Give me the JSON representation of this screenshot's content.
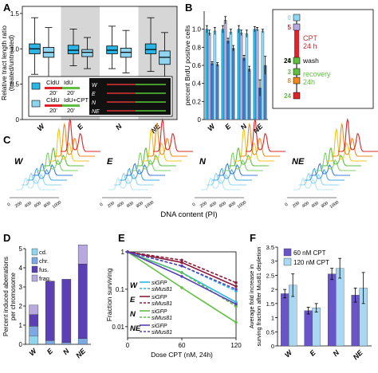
{
  "figure": {
    "panel_labels": [
      "A",
      "B",
      "C",
      "D",
      "E",
      "F"
    ],
    "cond_labels": [
      "W",
      "E",
      "N",
      "NE"
    ],
    "colors": {
      "light_blue": "#8fd5f0",
      "cyan": "#29b6e6",
      "dark_blue": "#3f7fd6",
      "purple": "#5a3fb5",
      "lavender": "#b7a9e0",
      "grey_band": "#d6d6d6",
      "green": "#5fbf3f",
      "red": "#e0232a",
      "maroon": "#8a1c3a",
      "orange": "#f08a1c"
    }
  },
  "panelA": {
    "ylabel": "Relative tract length ratio\n(treated/untreated)",
    "yticks": [
      "0",
      "0.5",
      "1.0",
      "1.5"
    ],
    "legend": {
      "row1": {
        "l1": "CldU",
        "l2": "IdU",
        "t1": "20'",
        "t2": "20'"
      },
      "row2": {
        "l1": "CldU",
        "l2": "IdU+CPT",
        "t1": "20'",
        "t2": "20'"
      }
    },
    "strip_labels": [
      "W",
      "E",
      "N",
      "NE"
    ]
  },
  "panelB": {
    "ylabel": "percent BrdU positive cells",
    "yticks": [
      "0",
      "0.2",
      "0.4",
      "0.6",
      "0.8",
      "1.0"
    ],
    "timeline": {
      "top": "0",
      "t5": "5",
      "cpt": "CPT\n24 h",
      "t0": "0",
      "t24a": "24",
      "wash": "wash",
      "t3": "3",
      "t8": "8",
      "recovery": "recovery\n24h",
      "t24b": "24"
    }
  },
  "panelC": {
    "xlabel": "DNA content (PI)",
    "xticks": [
      "0",
      "200",
      "400",
      "600",
      "800",
      "1000"
    ]
  },
  "panelD": {
    "ylabel": "Percent induced aberrations\nper chromosome",
    "yticks": [
      "0",
      "1",
      "2",
      "3",
      "4",
      "5"
    ],
    "legend": [
      "cd.",
      "chr.",
      "fus.",
      "frag."
    ]
  },
  "panelE": {
    "ylabel": "Fraction surviving",
    "xlabel": "Dose CPT (nM, 24h)",
    "yticks": [
      "0.01",
      "0.1",
      "1"
    ],
    "xticks": [
      "0",
      "60",
      "120"
    ],
    "legend": [
      {
        "cond": "W",
        "a": "siGFP",
        "b": "siMus81"
      },
      {
        "cond": "E",
        "a": "siGFP",
        "b": "siMus81"
      },
      {
        "cond": "N",
        "a": "siGFP",
        "b": "siMus81"
      },
      {
        "cond": "NE",
        "a": "siGFP",
        "b": "siMus81"
      }
    ]
  },
  "panelF": {
    "ylabel": "Average fold increase in\nsurving fraction after Mus81 depletion",
    "yticks": [
      "0",
      "0.5",
      "1",
      "1.5",
      "2",
      "2.5",
      "3",
      "3.5"
    ],
    "legend": [
      "60 nM CPT",
      "120 nM CPT"
    ]
  },
  "chart_data": [
    {
      "type": "box",
      "panel": "A",
      "categories": [
        "W",
        "E",
        "N",
        "NE"
      ],
      "ylim": [
        0,
        1.6
      ],
      "series": [
        {
          "name": "CldU / IdU",
          "median": [
            1.0,
            0.98,
            0.98,
            0.99
          ],
          "q1": [
            0.93,
            0.93,
            0.93,
            0.93
          ],
          "q3": [
            1.07,
            1.05,
            1.04,
            1.07
          ],
          "whisker_low": [
            0.64,
            0.76,
            0.72,
            0.68
          ],
          "whisker_high": [
            1.44,
            1.28,
            1.32,
            1.44
          ]
        },
        {
          "name": "CldU / IdU+CPT",
          "median": [
            0.95,
            0.95,
            0.95,
            0.88
          ],
          "q1": [
            0.88,
            0.89,
            0.88,
            0.78
          ],
          "q3": [
            1.02,
            0.99,
            1.01,
            0.97
          ],
          "whisker_low": [
            0.56,
            0.72,
            0.66,
            0.52
          ],
          "whisker_high": [
            1.3,
            1.16,
            1.26,
            1.23
          ]
        }
      ]
    },
    {
      "type": "bar",
      "panel": "B",
      "categories": [
        "W",
        "E",
        "N",
        "NE"
      ],
      "ylim": [
        0,
        1.2
      ],
      "series": [
        {
          "values": [
            1.0,
            1.0,
            1.0,
            1.0
          ],
          "err": [
            0.04,
            0.04,
            0.04,
            0.03
          ]
        },
        {
          "values": [
            0.96,
            1.1,
            0.96,
            1.0
          ],
          "err": [
            0.03,
            0.04,
            0.03,
            0.02
          ]
        },
        {
          "values": [
            0.62,
            0.87,
            0.68,
            0.35
          ],
          "err": [
            0.02,
            0.03,
            0.03,
            0.09
          ]
        },
        {
          "values": [
            0.98,
            0.97,
            0.95,
            0.98
          ],
          "err": [
            0.04,
            0.03,
            0.04,
            0.02
          ]
        },
        {
          "values": [
            0.61,
            0.79,
            0.56,
            0.6
          ],
          "err": [
            0.02,
            0.03,
            0.03,
            0.1
          ]
        }
      ]
    },
    {
      "type": "bar",
      "panel": "D",
      "categories": [
        "W",
        "E",
        "N",
        "NE"
      ],
      "ylim": [
        0,
        5
      ],
      "series": [
        {
          "name": "cd.",
          "values": [
            0.45,
            0.0,
            0.0,
            0.0
          ]
        },
        {
          "name": "chr.",
          "values": [
            0.5,
            0.2,
            0.1,
            0.3
          ]
        },
        {
          "name": "fus.",
          "values": [
            0.6,
            3.1,
            3.3,
            3.9
          ]
        },
        {
          "name": "frag.",
          "values": [
            0.5,
            0.0,
            0.0,
            1.0
          ]
        }
      ]
    },
    {
      "type": "line",
      "panel": "E",
      "x": [
        0,
        60,
        120
      ],
      "yscale": "log",
      "ylim": [
        0.005,
        1
      ],
      "xlim": [
        0,
        120
      ],
      "series": [
        {
          "name": "W siGFP",
          "values": [
            1.0,
            0.28,
            0.045
          ]
        },
        {
          "name": "W siMus81",
          "values": [
            1.0,
            0.42,
            0.09
          ]
        },
        {
          "name": "E siGFP",
          "values": [
            1.0,
            0.52,
            0.12
          ]
        },
        {
          "name": "E siMus81",
          "values": [
            1.0,
            0.6,
            0.15
          ]
        },
        {
          "name": "N siGFP",
          "values": [
            1.0,
            0.11,
            0.013
          ]
        },
        {
          "name": "N siMus81",
          "values": [
            1.0,
            0.28,
            0.035
          ]
        },
        {
          "name": "NE siGFP",
          "values": [
            1.0,
            0.22,
            0.04
          ]
        },
        {
          "name": "NE siMus81",
          "values": [
            1.0,
            0.42,
            0.1
          ]
        }
      ]
    },
    {
      "type": "bar",
      "panel": "F",
      "categories": [
        "W",
        "E",
        "N",
        "NE"
      ],
      "ylim": [
        0,
        3.5
      ],
      "series": [
        {
          "name": "60 nM CPT",
          "values": [
            1.85,
            1.25,
            2.55,
            1.8
          ],
          "err": [
            0.15,
            0.12,
            0.2,
            0.25
          ]
        },
        {
          "name": "120 nM CPT",
          "values": [
            2.15,
            1.35,
            2.75,
            2.05
          ],
          "err": [
            0.4,
            0.15,
            0.35,
            0.55
          ]
        }
      ]
    }
  ]
}
